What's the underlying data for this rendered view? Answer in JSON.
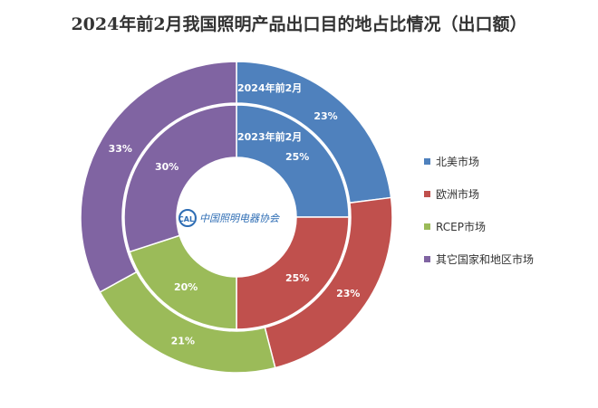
{
  "chart_data": {
    "type": "donut",
    "title": "2024年前2月我国照明产品出口目的地占比情况（出口额）",
    "categories": [
      "北美市场",
      "欧洲市场",
      "RCEP市场",
      "其它国家和地区市场"
    ],
    "colors": [
      "#4F81BD",
      "#C0504D",
      "#9BBB59",
      "#8064A2"
    ],
    "series": [
      {
        "name": "2024年前2月",
        "ring": "outer",
        "values": [
          23,
          23,
          21,
          33
        ],
        "labels": [
          "23%",
          "23%",
          "21%",
          "33%"
        ]
      },
      {
        "name": "2023年前2月",
        "ring": "inner",
        "values": [
          25,
          25,
          20,
          30
        ],
        "labels": [
          "25%",
          "25%",
          "20%",
          "30%"
        ]
      }
    ],
    "legend_position": "right"
  },
  "watermark": {
    "text": "中国照明电器协会",
    "badge": "CALI"
  }
}
